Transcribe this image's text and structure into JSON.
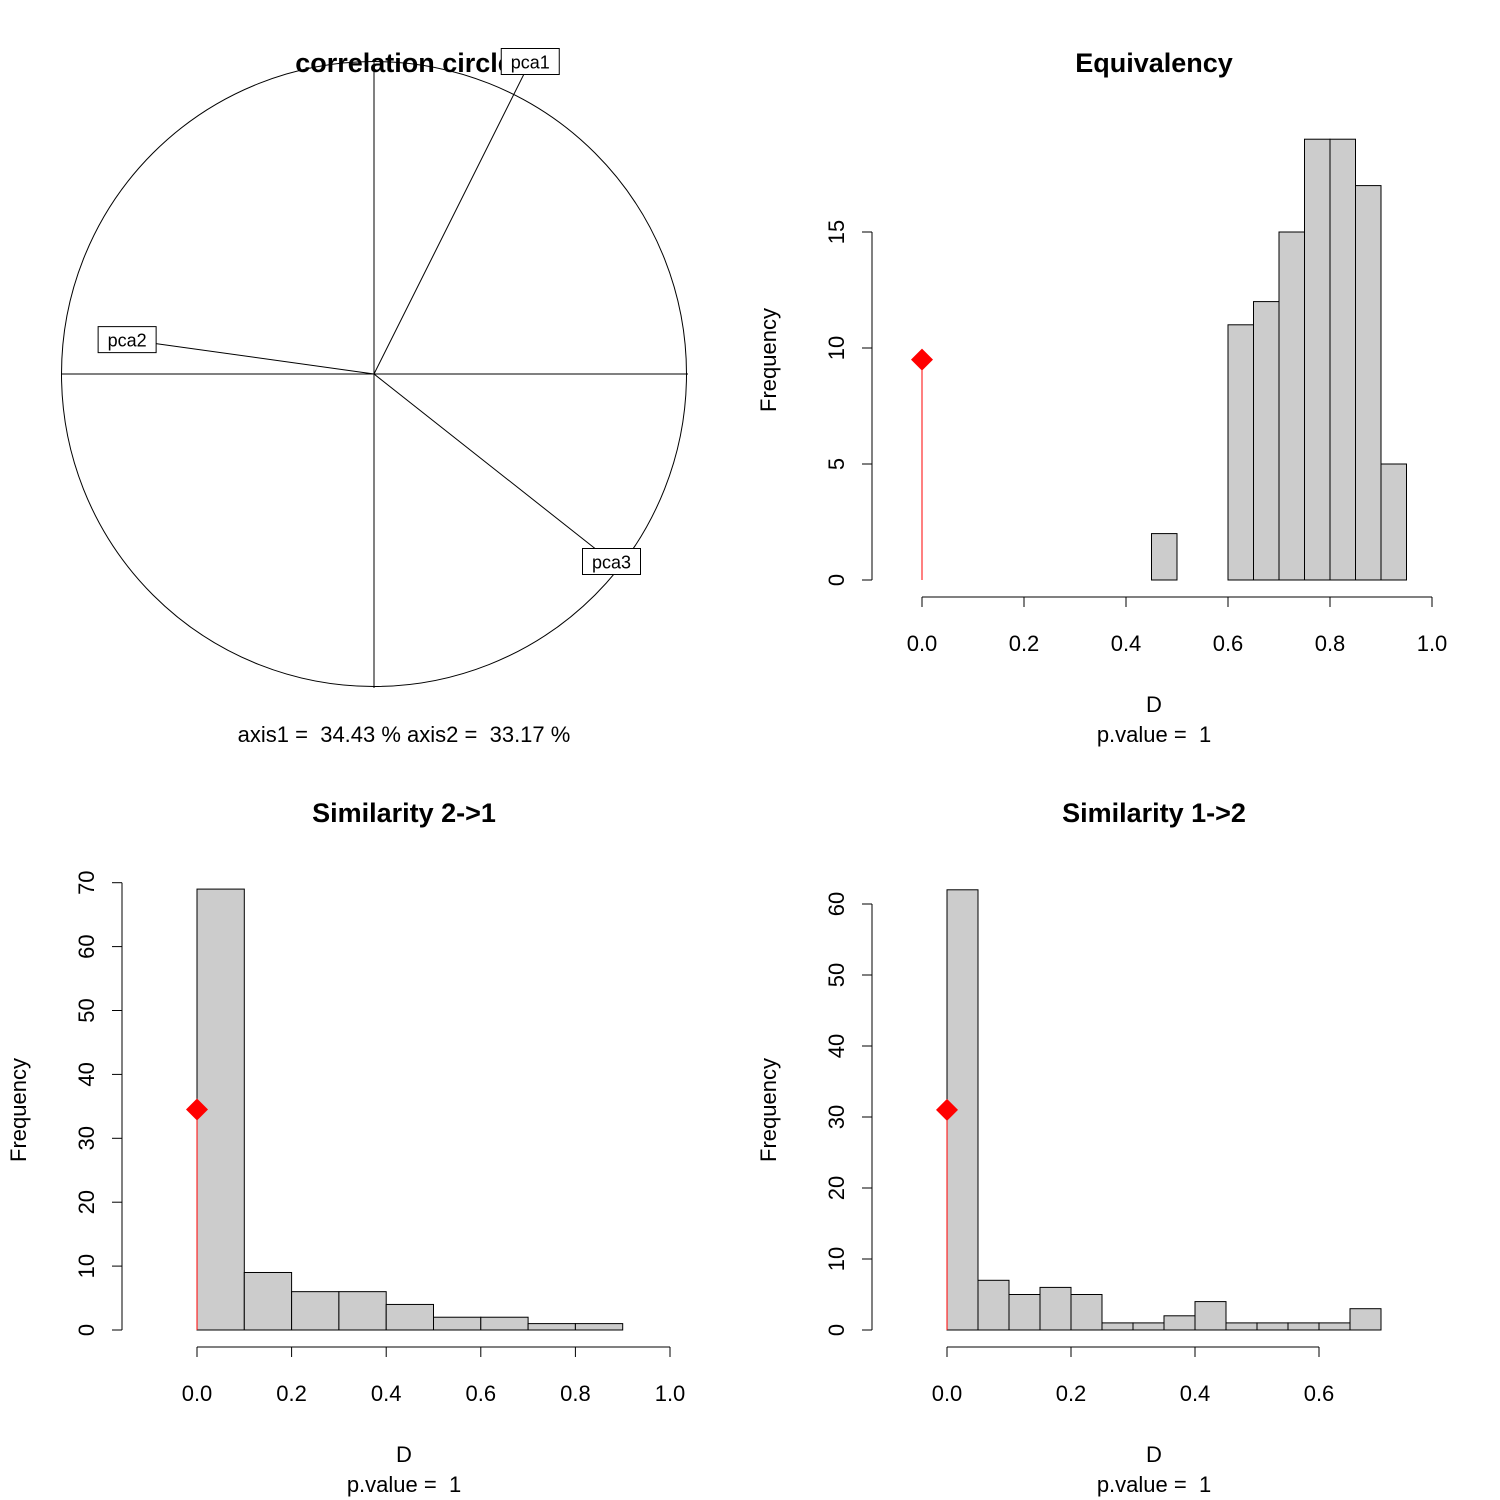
{
  "chart_data": [
    {
      "type": "scatter",
      "title": "correlation circle",
      "subtitle": "axis1 =  34.43 % axis2 =  33.17 %",
      "xlim": [
        -1,
        1
      ],
      "ylim": [
        -1,
        1
      ],
      "vectors": [
        {
          "name": "pca1",
          "x": 0.5,
          "y": 1.0
        },
        {
          "name": "pca2",
          "x": -0.79,
          "y": 0.11
        },
        {
          "name": "pca3",
          "x": 0.76,
          "y": -0.6
        }
      ]
    },
    {
      "type": "bar",
      "title": "Equivalency",
      "xlabel": "D",
      "ylabel": "Frequency",
      "subtitle": "p.value =  1",
      "xticks": [
        "0.0",
        "0.2",
        "0.4",
        "0.6",
        "0.8",
        "1.0"
      ],
      "yticks": [
        "0",
        "5",
        "10",
        "15"
      ],
      "bin_width": 0.05,
      "bins": [
        {
          "start": 0.45,
          "value": 2
        },
        {
          "start": 0.5,
          "value": 0
        },
        {
          "start": 0.55,
          "value": 0
        },
        {
          "start": 0.6,
          "value": 11
        },
        {
          "start": 0.65,
          "value": 12
        },
        {
          "start": 0.7,
          "value": 15
        },
        {
          "start": 0.75,
          "value": 19
        },
        {
          "start": 0.8,
          "value": 19
        },
        {
          "start": 0.85,
          "value": 17
        },
        {
          "start": 0.9,
          "value": 5
        }
      ],
      "observed": {
        "x": 0.0,
        "y": 9.5
      },
      "observed_color": "#ff0000",
      "bar_color": "#cccccc"
    },
    {
      "type": "bar",
      "title": "Similarity 2->1",
      "xlabel": "D",
      "ylabel": "Frequency",
      "subtitle": "p.value =  1",
      "xticks": [
        "0.0",
        "0.2",
        "0.4",
        "0.6",
        "0.8",
        "1.0"
      ],
      "yticks": [
        "0",
        "10",
        "20",
        "30",
        "40",
        "50",
        "60",
        "70"
      ],
      "bin_width": 0.1,
      "bins": [
        {
          "start": 0.0,
          "value": 69
        },
        {
          "start": 0.1,
          "value": 9
        },
        {
          "start": 0.2,
          "value": 6
        },
        {
          "start": 0.3,
          "value": 6
        },
        {
          "start": 0.4,
          "value": 4
        },
        {
          "start": 0.5,
          "value": 2
        },
        {
          "start": 0.6,
          "value": 2
        },
        {
          "start": 0.7,
          "value": 1
        },
        {
          "start": 0.8,
          "value": 1
        }
      ],
      "observed": {
        "x": 0.0,
        "y": 34.5
      },
      "observed_color": "#ff0000",
      "bar_color": "#cccccc"
    },
    {
      "type": "bar",
      "title": "Similarity 1->2",
      "xlabel": "D",
      "ylabel": "Frequency",
      "subtitle": "p.value =  1",
      "xticks": [
        "0.0",
        "0.2",
        "0.4",
        "0.6"
      ],
      "yticks": [
        "0",
        "10",
        "20",
        "30",
        "40",
        "50",
        "60"
      ],
      "bin_width": 0.05,
      "bins": [
        {
          "start": 0.0,
          "value": 62
        },
        {
          "start": 0.05,
          "value": 7
        },
        {
          "start": 0.1,
          "value": 5
        },
        {
          "start": 0.15,
          "value": 6
        },
        {
          "start": 0.2,
          "value": 5
        },
        {
          "start": 0.25,
          "value": 1
        },
        {
          "start": 0.3,
          "value": 1
        },
        {
          "start": 0.35,
          "value": 2
        },
        {
          "start": 0.4,
          "value": 4
        },
        {
          "start": 0.45,
          "value": 1
        },
        {
          "start": 0.5,
          "value": 1
        },
        {
          "start": 0.55,
          "value": 1
        },
        {
          "start": 0.6,
          "value": 1
        },
        {
          "start": 0.65,
          "value": 3
        }
      ],
      "observed": {
        "x": 0.0,
        "y": 31
      },
      "observed_color": "#ff0000",
      "bar_color": "#cccccc"
    }
  ]
}
